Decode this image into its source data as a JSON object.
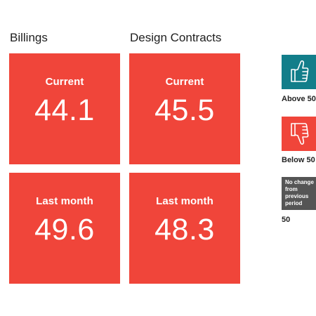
{
  "columns": [
    {
      "title": "Billings",
      "current_label": "Current",
      "current_value": "44.1",
      "last_label": "Last month",
      "last_value": "49.6"
    },
    {
      "title": "Design Contracts",
      "current_label": "Current",
      "current_value": "45.5",
      "last_label": "Last month",
      "last_value": "48.3"
    }
  ],
  "legend": {
    "above": {
      "label": "Above 50",
      "icon": "thumbs-up-icon",
      "color": "#127e8a"
    },
    "below": {
      "label": "Below 50",
      "icon": "thumbs-down-icon",
      "color": "#f0453a"
    },
    "no_change": {
      "box_text": [
        "No change",
        "from",
        "previous",
        "period"
      ],
      "label": "50",
      "color": "#555555"
    }
  },
  "colors": {
    "tile": "#f0453a",
    "text_on_tile": "#ffffff"
  }
}
